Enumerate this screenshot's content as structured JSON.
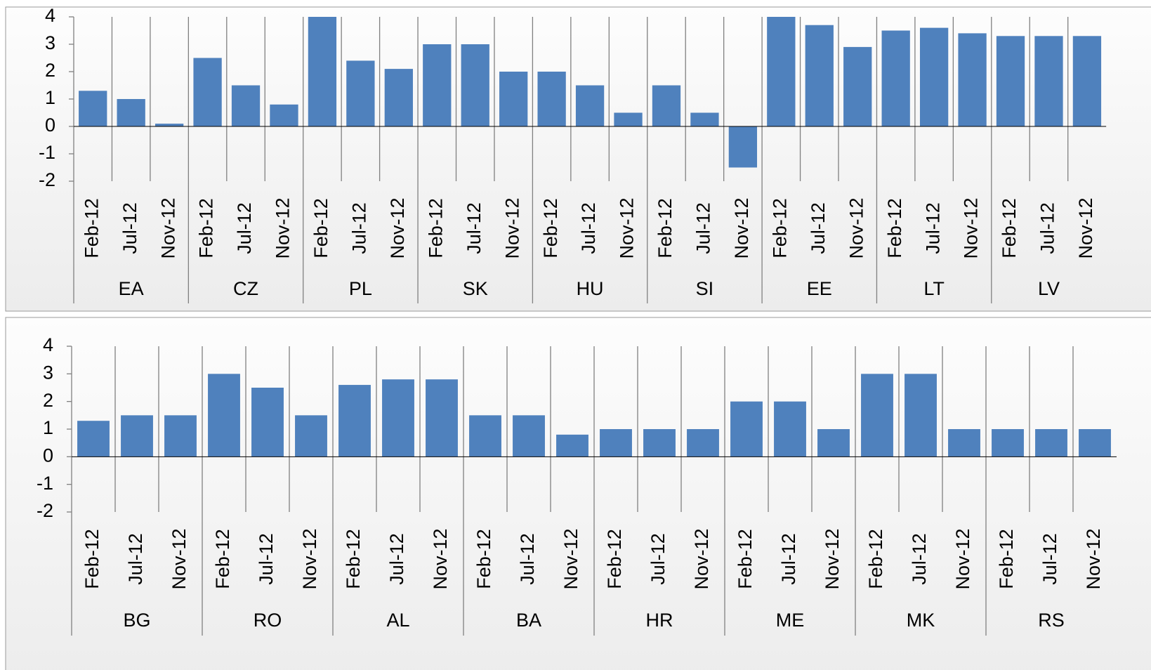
{
  "chart_data": [
    {
      "type": "bar",
      "color": "#4f81bd",
      "ylim": [
        -2,
        4
      ],
      "yticks": [
        -2,
        -1,
        0,
        1,
        2,
        3,
        4
      ],
      "groups": [
        "EA",
        "CZ",
        "PL",
        "SK",
        "HU",
        "SI",
        "EE",
        "LT",
        "LV"
      ],
      "categories": [
        "Feb-12",
        "Jul-12",
        "Nov-12",
        "Feb-12",
        "Jul-12",
        "Nov-12",
        "Feb-12",
        "Jul-12",
        "Nov-12",
        "Feb-12",
        "Jul-12",
        "Nov-12",
        "Feb-12",
        "Jul-12",
        "Nov-12",
        "Feb-12",
        "Jul-12",
        "Nov-12",
        "Feb-12",
        "Jul-12",
        "Nov-12",
        "Feb-12",
        "Jul-12",
        "Nov-12",
        "Feb-12",
        "Jul-12",
        "Nov-12"
      ],
      "values": [
        1.3,
        1.0,
        0.1,
        2.5,
        1.5,
        0.8,
        4.0,
        2.4,
        2.1,
        3.0,
        3.0,
        2.0,
        2.0,
        1.5,
        0.5,
        1.5,
        0.5,
        -1.5,
        4.0,
        3.7,
        2.9,
        3.5,
        3.6,
        3.4,
        3.3,
        3.3,
        3.3
      ]
    },
    {
      "type": "bar",
      "color": "#4f81bd",
      "ylim": [
        -2,
        4
      ],
      "yticks": [
        -2,
        -1,
        0,
        1,
        2,
        3,
        4
      ],
      "groups": [
        "BG",
        "RO",
        "AL",
        "BA",
        "HR",
        "ME",
        "MK",
        "RS"
      ],
      "categories": [
        "Feb-12",
        "Jul-12",
        "Nov-12",
        "Feb-12",
        "Jul-12",
        "Nov-12",
        "Feb-12",
        "Jul-12",
        "Nov-12",
        "Feb-12",
        "Jul-12",
        "Nov-12",
        "Feb-12",
        "Jul-12",
        "Nov-12",
        "Feb-12",
        "Jul-12",
        "Nov-12",
        "Feb-12",
        "Jul-12",
        "Nov-12",
        "Feb-12",
        "Jul-12",
        "Nov-12"
      ],
      "values": [
        1.3,
        1.5,
        1.5,
        3.0,
        2.5,
        1.5,
        2.6,
        2.8,
        2.8,
        1.5,
        1.5,
        0.8,
        1.0,
        1.0,
        1.0,
        2.0,
        2.0,
        1.0,
        3.0,
        3.0,
        1.0,
        1.0,
        1.0,
        1.0
      ]
    }
  ]
}
